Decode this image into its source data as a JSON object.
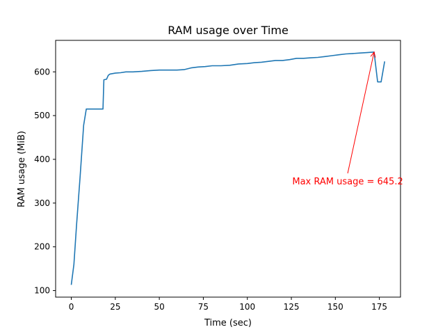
{
  "chart_data": {
    "type": "line",
    "title": "RAM usage over Time",
    "xlabel": "Time (sec)",
    "ylabel": "RAM usage (MiB)",
    "xlim": [
      -8.9,
      187.0
    ],
    "ylim": [
      85.0,
      672.0
    ],
    "xticks": [
      0,
      25,
      50,
      75,
      100,
      125,
      150,
      175
    ],
    "yticks": [
      100,
      200,
      300,
      400,
      500,
      600
    ],
    "grid": false,
    "series_color": "#1f77b4",
    "series": [
      {
        "x": [
          0,
          1.5,
          3,
          5,
          7,
          8.5,
          10,
          13,
          16,
          18,
          18.5,
          20,
          21,
          22,
          25,
          28,
          31,
          35,
          40,
          45,
          50,
          55,
          60,
          64,
          68,
          72,
          76,
          80,
          85,
          90,
          95,
          100,
          104,
          108,
          112,
          116,
          120,
          124,
          128,
          132,
          136,
          140,
          144,
          148,
          152,
          156,
          160,
          164,
          168,
          172,
          174,
          176,
          178
        ],
        "y": [
          113,
          160,
          250,
          360,
          478,
          515,
          515,
          515,
          515,
          515,
          582,
          583,
          592,
          595,
          597,
          598,
          600,
          600,
          601,
          603,
          604,
          604,
          604,
          605,
          609,
          611,
          612,
          614,
          614,
          615,
          618,
          619,
          621,
          622,
          624,
          626,
          626,
          628,
          631,
          631,
          632,
          633,
          635,
          637,
          639,
          641,
          642,
          643,
          644,
          645.2,
          577,
          577,
          624
        ]
      }
    ],
    "annotation": {
      "text": "Max RAM usage = 645.2",
      "color": "#ff0000",
      "point": [
        172,
        645.2
      ],
      "text_anchor_point": [
        157,
        368
      ]
    }
  }
}
